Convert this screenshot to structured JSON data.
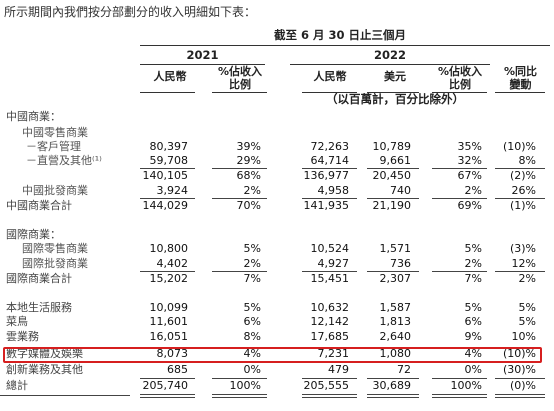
{
  "intro_text": "所示期間內我們按分部劃分的收入明細如下表：",
  "header": {
    "period": "截至 6 月 30 日止三個月",
    "year_2021": "2021",
    "year_2022": "2022",
    "col_rmb_2021": "人民幣",
    "col_pct_2021": [
      "%佔收入",
      "比例"
    ],
    "col_rmb_2022": "人民幣",
    "col_usd_2022": "美元",
    "col_pct_2022": [
      "%佔收入",
      "比例"
    ],
    "col_growth": [
      "%同比",
      "變動"
    ],
    "units": "（以百萬計，百分比除外）"
  },
  "rows": [
    {
      "label": "中國商業：",
      "indent": 1,
      "values": []
    },
    {
      "label": "中國零售商業",
      "indent": 2,
      "values": []
    },
    {
      "label": "－客戶管理",
      "indent": 3,
      "values": [
        "80,397",
        "39%",
        "72,263",
        "10,789",
        "35%",
        "(10)%"
      ]
    },
    {
      "label": "－直營及其他⁽¹⁾",
      "indent": 3,
      "values": [
        "59,708",
        "29%",
        "64,714",
        "9,661",
        "32%",
        "8%"
      ]
    },
    {
      "label": "",
      "indent": 3,
      "values": [
        "140,105",
        "68%",
        "136,977",
        "20,450",
        "67%",
        "(2)%"
      ],
      "line_above": true
    },
    {
      "label": "中國批發商業",
      "indent": 2,
      "values": [
        "3,924",
        "2%",
        "4,958",
        "740",
        "2%",
        "26%"
      ]
    },
    {
      "label": "中國商業合計",
      "indent": 1,
      "values": [
        "144,029",
        "70%",
        "141,935",
        "21,190",
        "69%",
        "(1)%"
      ],
      "line_above": true
    },
    {
      "label": "國際商業：",
      "indent": 1,
      "values": []
    },
    {
      "label": "國際零售商業",
      "indent": 2,
      "values": [
        "10,800",
        "5%",
        "10,524",
        "1,571",
        "5%",
        "(3)%"
      ]
    },
    {
      "label": "國際批發商業",
      "indent": 2,
      "values": [
        "4,402",
        "2%",
        "4,927",
        "736",
        "2%",
        "12%"
      ]
    },
    {
      "label": "國際商業合計",
      "indent": 1,
      "values": [
        "15,202",
        "7%",
        "15,451",
        "2,307",
        "7%",
        "2%"
      ],
      "line_above": true
    },
    {
      "label": "本地生活服務",
      "indent": 1,
      "values": [
        "10,099",
        "5%",
        "10,632",
        "1,587",
        "5%",
        "5%"
      ]
    },
    {
      "label": "菜鳥",
      "indent": 1,
      "values": [
        "11,601",
        "6%",
        "12,142",
        "1,813",
        "6%",
        "5%"
      ]
    },
    {
      "label": "雲業務",
      "indent": 1,
      "values": [
        "16,051",
        "8%",
        "17,685",
        "2,640",
        "9%",
        "10%"
      ]
    },
    {
      "label": "數字媒體及娛樂",
      "indent": 1,
      "values": [
        "8,073",
        "4%",
        "7,231",
        "1,080",
        "4%",
        "(10)%"
      ],
      "highlight": true
    },
    {
      "label": "創新業務及其他",
      "indent": 1,
      "values": [
        "685",
        "0%",
        "479",
        "72",
        "0%",
        "(30)%"
      ]
    },
    {
      "label": "總計",
      "indent": 1,
      "values": [
        "205,740",
        "100%",
        "205,555",
        "30,689",
        "100%",
        "(0)%"
      ],
      "line_above": true
    }
  ],
  "highlight_color": "#d61f1f"
}
